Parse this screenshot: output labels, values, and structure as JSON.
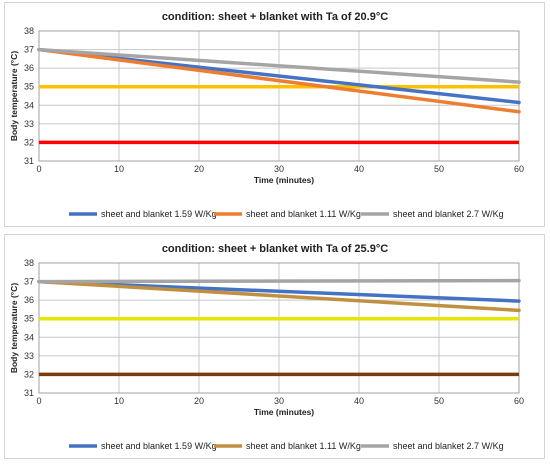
{
  "chart_data": [
    {
      "type": "line",
      "title": "condition: sheet + blanket with Ta of 20.9°C",
      "xlabel": "Time (minutes)",
      "ylabel": "Body temperature (°C)",
      "xlim": [
        0,
        60
      ],
      "ylim": [
        31,
        38
      ],
      "x_ticks": [
        "0",
        "10",
        "20",
        "30",
        "40",
        "50",
        "60"
      ],
      "y_ticks": [
        "31",
        "32",
        "33",
        "34",
        "35",
        "36",
        "37",
        "38"
      ],
      "grid": true,
      "legend_position": "bottom",
      "series": [
        {
          "name": "sheet and blanket 1.59 W/Kg",
          "color": "#4472C4",
          "x": [
            0,
            60
          ],
          "y": [
            37.0,
            34.15
          ]
        },
        {
          "name": "sheet and blanket 1.11 W/Kg",
          "color": "#ED7D31",
          "x": [
            0,
            60
          ],
          "y": [
            37.0,
            33.65
          ]
        },
        {
          "name": "sheet and blanket  2.7 W/Kg",
          "color": "#A5A5A5",
          "x": [
            0,
            60
          ],
          "y": [
            37.0,
            35.25
          ]
        }
      ],
      "reference_lines": [
        {
          "y": 35,
          "color": "#FFC000"
        },
        {
          "y": 32,
          "color": "#FF0000"
        }
      ]
    },
    {
      "type": "line",
      "title": "condition: sheet + blanket with Ta of 25.9°C",
      "xlabel": "Time (minutes)",
      "ylabel": "Body temperature (°C)",
      "xlim": [
        0,
        60
      ],
      "ylim": [
        31,
        38
      ],
      "x_ticks": [
        "0",
        "10",
        "20",
        "30",
        "40",
        "50",
        "60"
      ],
      "y_ticks": [
        "31",
        "32",
        "33",
        "34",
        "35",
        "36",
        "37",
        "38"
      ],
      "grid": true,
      "legend_position": "bottom",
      "series": [
        {
          "name": "sheet and blanket 1.59 W/Kg",
          "color": "#4472C4",
          "x": [
            0,
            60
          ],
          "y": [
            37.0,
            35.95
          ]
        },
        {
          "name": "sheet and blanket 1.11 W/Kg",
          "color": "#C09040",
          "x": [
            0,
            60
          ],
          "y": [
            37.0,
            35.45
          ]
        },
        {
          "name": "sheet and blanket  2.7 W/Kg",
          "color": "#A5A5A5",
          "x": [
            0,
            60
          ],
          "y": [
            37.0,
            37.05
          ]
        }
      ],
      "reference_lines": [
        {
          "y": 35,
          "color": "#E6E600"
        },
        {
          "y": 32,
          "color": "#7B3A10"
        }
      ]
    }
  ]
}
